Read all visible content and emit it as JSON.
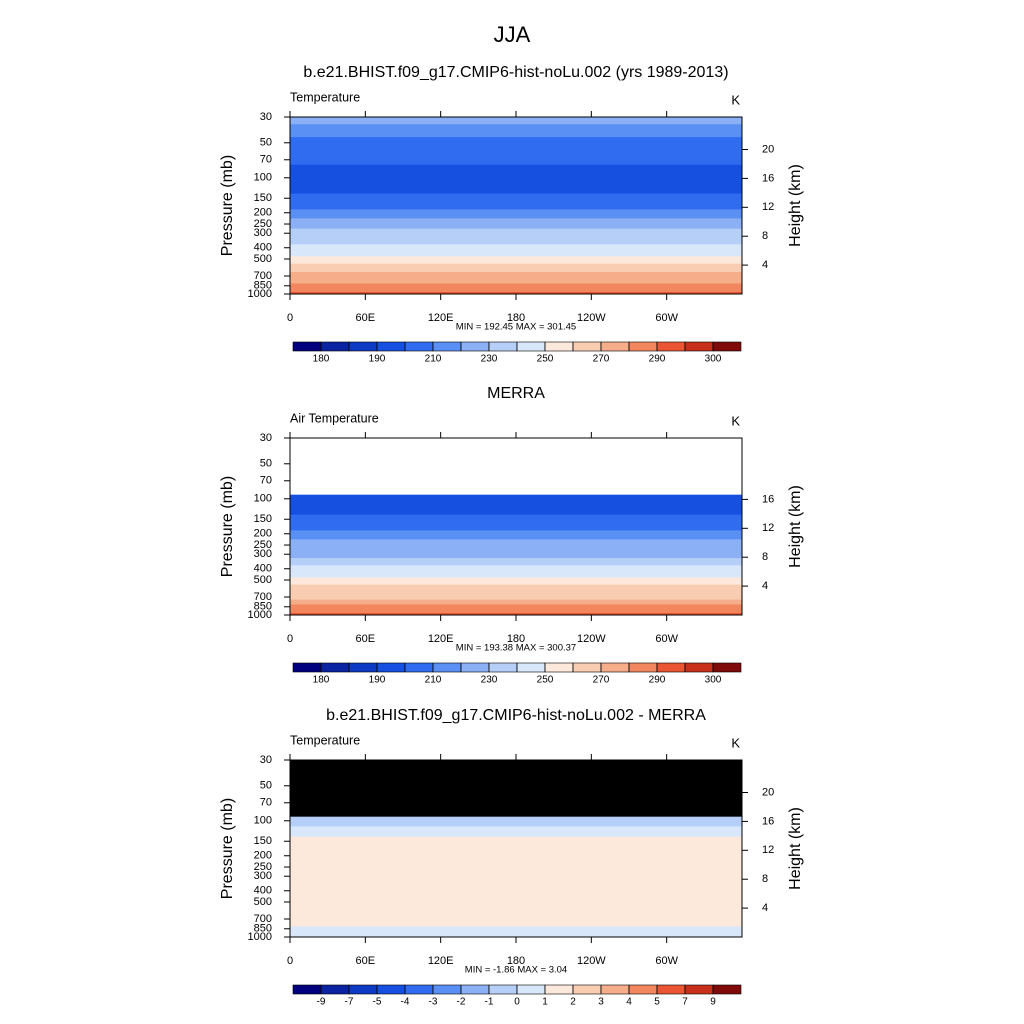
{
  "title": "JJA",
  "chart_data": [
    {
      "type": "contour",
      "title": "b.e21.BHIST.f09_g17.CMIP6-hist-noLu.002 (yrs 1989-2013)",
      "left_label": "Temperature",
      "units": "K",
      "ylabel": "Pressure (mb)",
      "y2label": "Height (km)",
      "xlim": [
        0,
        360
      ],
      "xticks": [
        0,
        {
          "value": 60,
          "label": "60E"
        },
        {
          "value": 120,
          "label": "120E"
        },
        180,
        {
          "value": 240,
          "label": "120W"
        },
        {
          "value": 300,
          "label": "60W"
        }
      ],
      "ylim": [
        1000,
        30
      ],
      "ylog": true,
      "yticks": [
        30,
        50,
        70,
        100,
        150,
        200,
        250,
        300,
        400,
        500,
        700,
        850,
        1000
      ],
      "y2lim": [
        0,
        24.5
      ],
      "y2ticks": [
        4,
        8,
        12,
        16,
        20
      ],
      "stats": "MIN = 192.45  MAX = 301.45",
      "pressure": [
        30,
        40,
        50,
        60,
        70,
        85,
        100,
        125,
        150,
        175,
        200,
        250,
        300,
        350,
        400,
        450,
        500,
        600,
        700,
        775,
        850,
        925,
        1000
      ],
      "values": [
        222,
        216,
        207,
        204,
        202,
        198,
        197,
        199,
        203,
        207,
        212,
        222,
        230,
        237,
        243,
        249,
        254,
        262,
        270,
        275,
        281,
        286,
        291
      ],
      "missing_color": "#ffffff",
      "colorbar": {
        "levels": [
          180,
          185,
          190,
          200,
          210,
          220,
          230,
          240,
          250,
          260,
          270,
          280,
          290,
          295,
          300
        ],
        "label_step": 2,
        "colors": [
          "#00007f",
          "#0a23a0",
          "#0d3ac2",
          "#1550e0",
          "#2f6cf0",
          "#5a8ff4",
          "#8bb0f6",
          "#b6cff8",
          "#d9e7fa",
          "#fde9dc",
          "#f9cdb2",
          "#f6ad89",
          "#f2865e",
          "#ea5533",
          "#c8301c",
          "#7f0a0a"
        ]
      }
    },
    {
      "type": "contour",
      "title": "MERRA",
      "left_label": "Air Temperature",
      "units": "K",
      "ylabel": "Pressure (mb)",
      "y2label": "Height (km)",
      "xlim": [
        0,
        360
      ],
      "xticks": [
        0,
        {
          "value": 60,
          "label": "60E"
        },
        {
          "value": 120,
          "label": "120E"
        },
        180,
        {
          "value": 240,
          "label": "120W"
        },
        {
          "value": 300,
          "label": "60W"
        }
      ],
      "ylim": [
        1000,
        30
      ],
      "ylog": true,
      "yticks": [
        30,
        50,
        70,
        100,
        150,
        200,
        250,
        300,
        400,
        500,
        700,
        850,
        1000
      ],
      "y2lim": [
        0,
        24.5
      ],
      "y2ticks": [
        4,
        8,
        12,
        16
      ],
      "stats": "MIN = 193.38  MAX = 300.37",
      "pressure": [
        30,
        40,
        50,
        60,
        70,
        85,
        100,
        125,
        150,
        175,
        200,
        250,
        300,
        350,
        400,
        450,
        500,
        600,
        700,
        775,
        850,
        925,
        1000
      ],
      "values": [
        null,
        null,
        null,
        null,
        null,
        null,
        197,
        198,
        202,
        206,
        211,
        221,
        229,
        236,
        242,
        248,
        253,
        261,
        269,
        274,
        280,
        285,
        290
      ],
      "missing_color": "#ffffff",
      "colorbar": {
        "levels": [
          180,
          185,
          190,
          200,
          210,
          220,
          230,
          240,
          250,
          260,
          270,
          280,
          290,
          295,
          300
        ],
        "label_step": 2,
        "colors": [
          "#00007f",
          "#0a23a0",
          "#0d3ac2",
          "#1550e0",
          "#2f6cf0",
          "#5a8ff4",
          "#8bb0f6",
          "#b6cff8",
          "#d9e7fa",
          "#fde9dc",
          "#f9cdb2",
          "#f6ad89",
          "#f2865e",
          "#ea5533",
          "#c8301c",
          "#7f0a0a"
        ]
      }
    },
    {
      "type": "contour",
      "title": "b.e21.BHIST.f09_g17.CMIP6-hist-noLu.002 - MERRA",
      "left_label": "Temperature",
      "units": "K",
      "ylabel": "Pressure (mb)",
      "y2label": "Height (km)",
      "xlim": [
        0,
        360
      ],
      "xticks": [
        0,
        {
          "value": 60,
          "label": "60E"
        },
        {
          "value": 120,
          "label": "120E"
        },
        180,
        {
          "value": 240,
          "label": "120W"
        },
        {
          "value": 300,
          "label": "60W"
        }
      ],
      "ylim": [
        1000,
        30
      ],
      "ylog": true,
      "yticks": [
        30,
        50,
        70,
        100,
        150,
        200,
        250,
        300,
        400,
        500,
        700,
        850,
        1000
      ],
      "y2lim": [
        0,
        24.5
      ],
      "y2ticks": [
        4,
        8,
        12,
        16,
        20
      ],
      "stats": "MIN = -1.86  MAX =  3.04",
      "pressure": [
        30,
        40,
        50,
        60,
        70,
        85,
        100,
        125,
        150,
        175,
        200,
        250,
        300,
        350,
        400,
        450,
        500,
        600,
        700,
        775,
        850,
        925,
        1000
      ],
      "values": [
        null,
        null,
        null,
        null,
        null,
        null,
        -0.5,
        0.5,
        1.4,
        1.5,
        1.5,
        1.4,
        1.3,
        1.4,
        1.5,
        1.4,
        1.3,
        1.2,
        1.1,
        1.0,
        0.8,
        0.6,
        0.4
      ],
      "missing_color": "#000000",
      "colorbar": {
        "levels": [
          -9,
          -7,
          -5,
          -4,
          -3,
          -2,
          -1,
          0,
          1,
          2,
          3,
          4,
          5,
          7,
          9
        ],
        "label_step": 1,
        "colors": [
          "#00007f",
          "#0a23a0",
          "#0d3ac2",
          "#1550e0",
          "#2f6cf0",
          "#5a8ff4",
          "#8bb0f6",
          "#b6cff8",
          "#d9e7fa",
          "#fde9dc",
          "#f9cdb2",
          "#f6ad89",
          "#f2865e",
          "#ea5533",
          "#c8301c",
          "#7f0a0a"
        ]
      }
    }
  ]
}
